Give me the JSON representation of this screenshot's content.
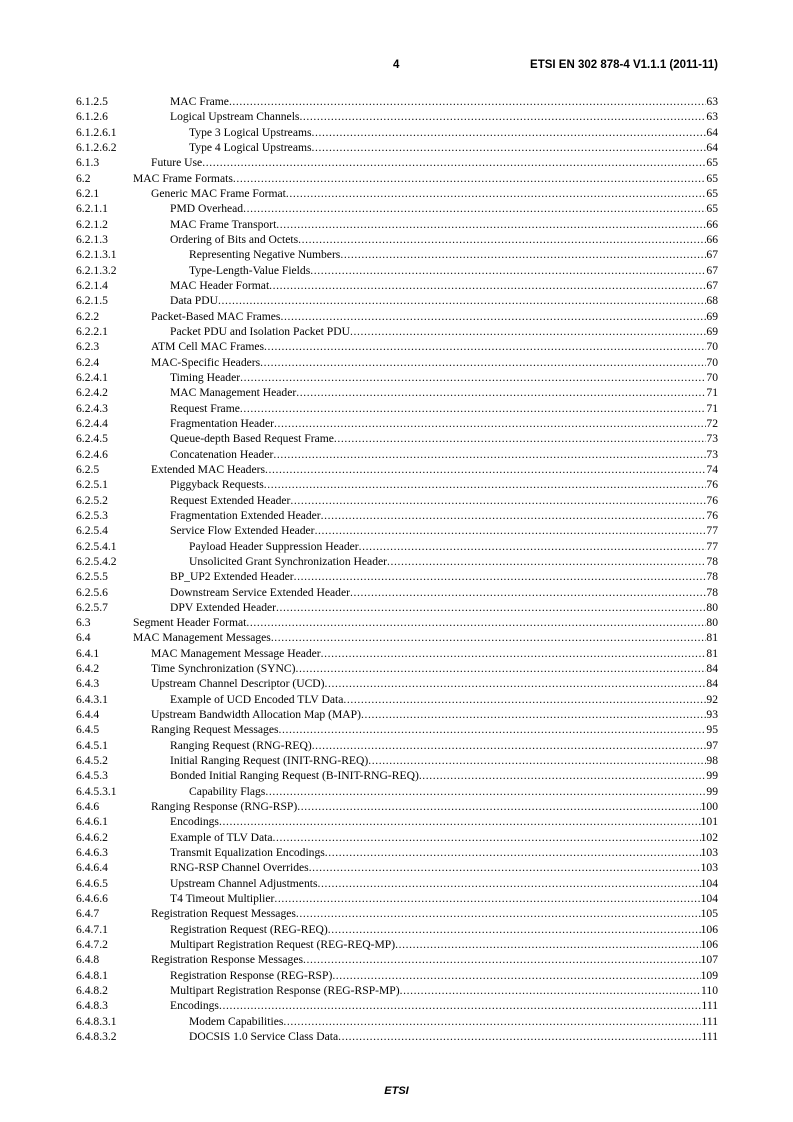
{
  "header": {
    "page_number": "4",
    "document_id": "ETSI EN 302 878-4 V1.1.1 (2011-11)"
  },
  "toc": [
    {
      "number": "6.1.2.5",
      "title": "MAC Frame",
      "page": "63"
    },
    {
      "number": "6.1.2.6",
      "title": "Logical Upstream Channels",
      "page": "63"
    },
    {
      "number": "6.1.2.6.1",
      "title": "Type 3 Logical Upstreams",
      "page": "64"
    },
    {
      "number": "6.1.2.6.2",
      "title": "Type 4 Logical Upstreams",
      "page": "64"
    },
    {
      "number": "6.1.3",
      "title": "Future Use",
      "page": "65"
    },
    {
      "number": "6.2",
      "title": "MAC Frame Formats",
      "page": "65"
    },
    {
      "number": "6.2.1",
      "title": "Generic MAC Frame Format",
      "page": "65"
    },
    {
      "number": "6.2.1.1",
      "title": "PMD Overhead",
      "page": "65"
    },
    {
      "number": "6.2.1.2",
      "title": "MAC Frame Transport",
      "page": "66"
    },
    {
      "number": "6.2.1.3",
      "title": "Ordering of Bits and Octets",
      "page": "66"
    },
    {
      "number": "6.2.1.3.1",
      "title": "Representing Negative Numbers",
      "page": "67"
    },
    {
      "number": "6.2.1.3.2",
      "title": "Type-Length-Value Fields",
      "page": "67"
    },
    {
      "number": "6.2.1.4",
      "title": "MAC Header Format",
      "page": "67"
    },
    {
      "number": "6.2.1.5",
      "title": "Data PDU",
      "page": "68"
    },
    {
      "number": "6.2.2",
      "title": "Packet-Based MAC Frames",
      "page": "69"
    },
    {
      "number": "6.2.2.1",
      "title": "Packet PDU and Isolation Packet PDU",
      "page": "69"
    },
    {
      "number": "6.2.3",
      "title": "ATM Cell MAC Frames",
      "page": "70"
    },
    {
      "number": "6.2.4",
      "title": "MAC-Specific Headers",
      "page": "70"
    },
    {
      "number": "6.2.4.1",
      "title": "Timing Header",
      "page": "70"
    },
    {
      "number": "6.2.4.2",
      "title": "MAC Management Header",
      "page": "71"
    },
    {
      "number": "6.2.4.3",
      "title": "Request Frame",
      "page": "71"
    },
    {
      "number": "6.2.4.4",
      "title": "Fragmentation Header",
      "page": "72"
    },
    {
      "number": "6.2.4.5",
      "title": "Queue-depth Based Request Frame",
      "page": "73"
    },
    {
      "number": "6.2.4.6",
      "title": "Concatenation Header",
      "page": "73"
    },
    {
      "number": "6.2.5",
      "title": "Extended MAC Headers",
      "page": "74"
    },
    {
      "number": "6.2.5.1",
      "title": "Piggyback Requests",
      "page": "76"
    },
    {
      "number": "6.2.5.2",
      "title": "Request Extended Header",
      "page": "76"
    },
    {
      "number": "6.2.5.3",
      "title": "Fragmentation Extended Header",
      "page": "76"
    },
    {
      "number": "6.2.5.4",
      "title": "Service Flow Extended Header",
      "page": "77"
    },
    {
      "number": "6.2.5.4.1",
      "title": "Payload Header Suppression Header",
      "page": "77"
    },
    {
      "number": "6.2.5.4.2",
      "title": "Unsolicited Grant Synchronization Header",
      "page": "78"
    },
    {
      "number": "6.2.5.5",
      "title": "BP_UP2 Extended Header",
      "page": "78"
    },
    {
      "number": "6.2.5.6",
      "title": "Downstream Service Extended Header",
      "page": "78"
    },
    {
      "number": "6.2.5.7",
      "title": "DPV Extended Header",
      "page": "80"
    },
    {
      "number": "6.3",
      "title": "Segment Header Format",
      "page": "80"
    },
    {
      "number": "6.4",
      "title": "MAC Management Messages",
      "page": "81"
    },
    {
      "number": "6.4.1",
      "title": "MAC Management Message Header",
      "page": "81"
    },
    {
      "number": "6.4.2",
      "title": "Time Synchronization (SYNC)",
      "page": "84"
    },
    {
      "number": "6.4.3",
      "title": "Upstream Channel Descriptor (UCD)",
      "page": "84"
    },
    {
      "number": "6.4.3.1",
      "title": "Example of UCD Encoded TLV Data",
      "page": "92"
    },
    {
      "number": "6.4.4",
      "title": "Upstream Bandwidth Allocation Map (MAP)",
      "page": "93"
    },
    {
      "number": "6.4.5",
      "title": "Ranging Request Messages",
      "page": "95"
    },
    {
      "number": "6.4.5.1",
      "title": "Ranging Request (RNG-REQ)",
      "page": "97"
    },
    {
      "number": "6.4.5.2",
      "title": "Initial Ranging Request (INIT-RNG-REQ)",
      "page": "98"
    },
    {
      "number": "6.4.5.3",
      "title": "Bonded Initial Ranging Request (B-INIT-RNG-REQ)",
      "page": "99"
    },
    {
      "number": "6.4.5.3.1",
      "title": "Capability Flags",
      "page": "99"
    },
    {
      "number": "6.4.6",
      "title": "Ranging Response (RNG-RSP)",
      "page": "100"
    },
    {
      "number": "6.4.6.1",
      "title": "Encodings",
      "page": "101"
    },
    {
      "number": "6.4.6.2",
      "title": "Example of TLV Data",
      "page": "102"
    },
    {
      "number": "6.4.6.3",
      "title": "Transmit Equalization Encodings",
      "page": "103"
    },
    {
      "number": "6.4.6.4",
      "title": "RNG-RSP Channel Overrides",
      "page": "103"
    },
    {
      "number": "6.4.6.5",
      "title": "Upstream Channel Adjustments",
      "page": "104"
    },
    {
      "number": "6.4.6.6",
      "title": "T4 Timeout Multiplier",
      "page": "104"
    },
    {
      "number": "6.4.7",
      "title": "Registration Request Messages",
      "page": "105"
    },
    {
      "number": "6.4.7.1",
      "title": "Registration Request (REG-REQ)",
      "page": "106"
    },
    {
      "number": "6.4.7.2",
      "title": "Multipart Registration Request (REG-REQ-MP)",
      "page": "106"
    },
    {
      "number": "6.4.8",
      "title": "Registration Response Messages",
      "page": "107"
    },
    {
      "number": "6.4.8.1",
      "title": "Registration Response (REG-RSP)",
      "page": "109"
    },
    {
      "number": "6.4.8.2",
      "title": "Multipart Registration Response (REG-RSP-MP)",
      "page": "110"
    },
    {
      "number": "6.4.8.3",
      "title": "Encodings",
      "page": "111"
    },
    {
      "number": "6.4.8.3.1",
      "title": "Modem Capabilities",
      "page": "111"
    },
    {
      "number": "6.4.8.3.2",
      "title": "DOCSIS 1.0 Service Class Data",
      "page": "111"
    }
  ],
  "footer": {
    "label": "ETSI"
  }
}
